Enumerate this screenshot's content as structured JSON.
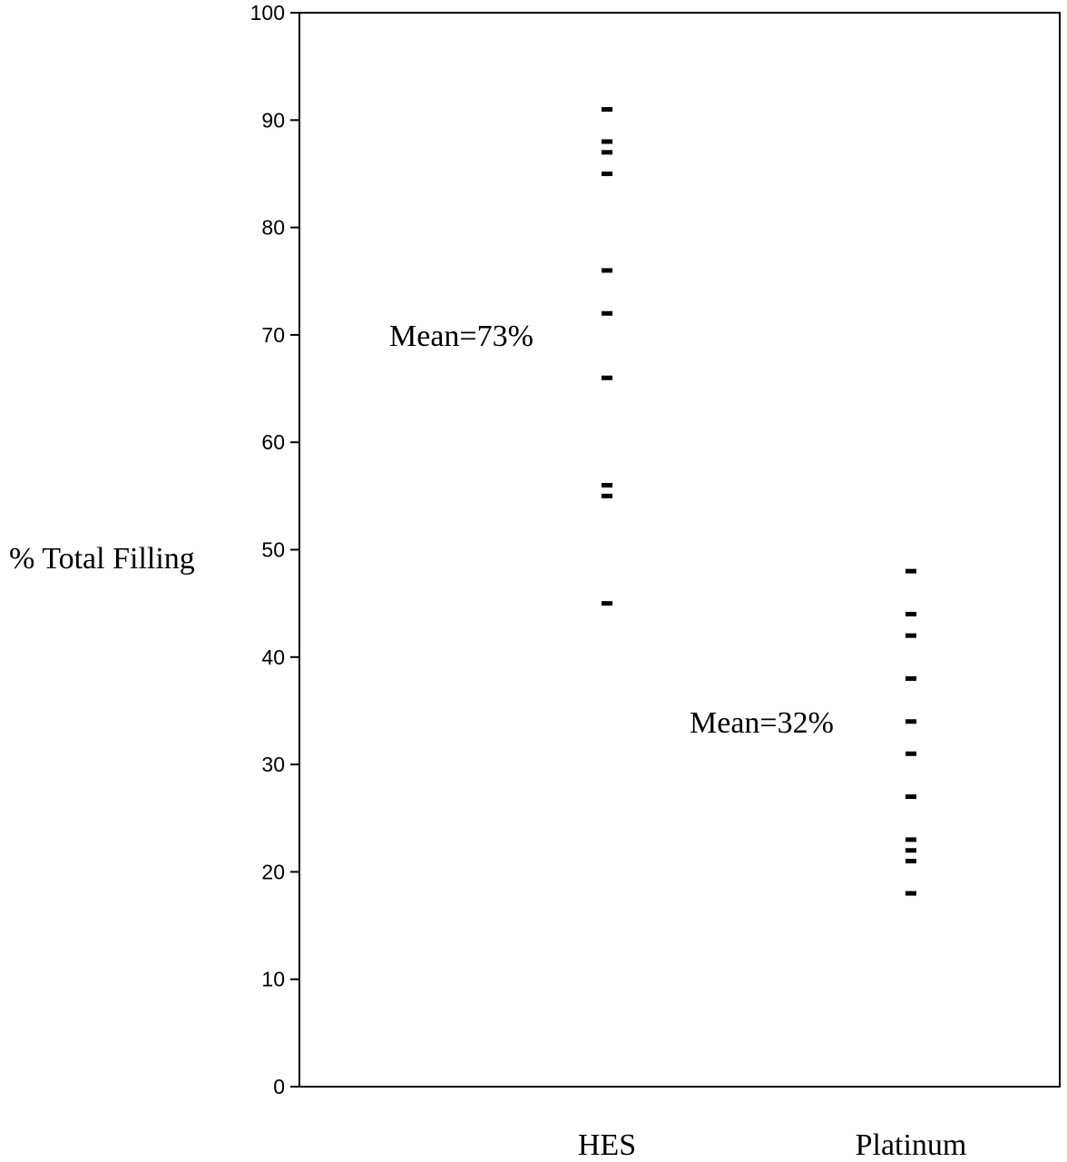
{
  "chart_data": {
    "type": "scatter",
    "title": "",
    "xlabel": "",
    "ylabel": "% Total Filling",
    "ylim": [
      0,
      100
    ],
    "yticks": [
      0,
      10,
      20,
      30,
      40,
      50,
      60,
      70,
      80,
      90,
      100
    ],
    "grid": false,
    "categories": [
      "HES",
      "Platinum"
    ],
    "series": [
      {
        "category": "HES",
        "values": [
          91,
          88,
          87,
          85,
          76,
          72,
          66,
          56,
          55,
          45
        ]
      },
      {
        "category": "Platinum",
        "values": [
          48,
          44,
          42,
          38,
          34,
          31,
          27,
          23,
          22,
          21,
          18
        ]
      }
    ],
    "annotations": [
      {
        "text": "Mean=73%",
        "category": "HES",
        "y": 70
      },
      {
        "text": "Mean=32%",
        "category": "Platinum",
        "y": 34
      }
    ],
    "marker_color": "#000000"
  }
}
